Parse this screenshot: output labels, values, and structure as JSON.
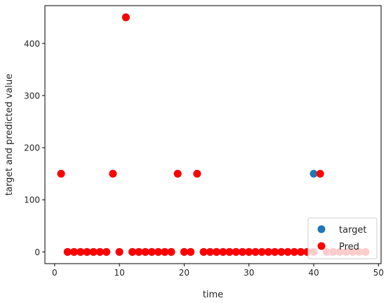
{
  "chart_data": {
    "type": "scatter",
    "title": "",
    "xlabel": "time",
    "ylabel": "target and predicted value",
    "xlim": [
      -1.5,
      50.4
    ],
    "ylim": [
      -22.5,
      472.5
    ],
    "xticks": [
      0,
      10,
      20,
      30,
      40,
      50
    ],
    "yticks": [
      0,
      100,
      200,
      300,
      400
    ],
    "grid": false,
    "legend_position": "lower right",
    "series": [
      {
        "name": "target",
        "color": "#1f77b4",
        "points": [
          [
            1,
            150
          ],
          [
            2,
            0
          ],
          [
            3,
            0
          ],
          [
            4,
            0
          ],
          [
            5,
            0
          ],
          [
            6,
            0
          ],
          [
            7,
            0
          ],
          [
            8,
            0
          ],
          [
            9,
            150
          ],
          [
            10,
            0
          ],
          [
            11,
            450
          ],
          [
            12,
            0
          ],
          [
            13,
            0
          ],
          [
            14,
            0
          ],
          [
            15,
            0
          ],
          [
            16,
            0
          ],
          [
            17,
            0
          ],
          [
            18,
            0
          ],
          [
            19,
            150
          ],
          [
            20,
            0
          ],
          [
            21,
            0
          ],
          [
            22,
            150
          ],
          [
            23,
            0
          ],
          [
            24,
            0
          ],
          [
            25,
            0
          ],
          [
            26,
            0
          ],
          [
            27,
            0
          ],
          [
            28,
            0
          ],
          [
            29,
            0
          ],
          [
            30,
            0
          ],
          [
            31,
            0
          ],
          [
            32,
            0
          ],
          [
            33,
            0
          ],
          [
            34,
            0
          ],
          [
            35,
            0
          ],
          [
            36,
            0
          ],
          [
            37,
            0
          ],
          [
            38,
            0
          ],
          [
            39,
            0
          ],
          [
            40,
            150
          ]
        ]
      },
      {
        "name": "Pred",
        "color": "#ff0000",
        "points": [
          [
            1,
            150
          ],
          [
            2,
            0
          ],
          [
            3,
            0
          ],
          [
            4,
            0
          ],
          [
            5,
            0
          ],
          [
            6,
            0
          ],
          [
            7,
            0
          ],
          [
            8,
            0
          ],
          [
            9,
            150
          ],
          [
            10,
            0
          ],
          [
            11,
            450
          ],
          [
            12,
            0
          ],
          [
            13,
            0
          ],
          [
            14,
            0
          ],
          [
            15,
            0
          ],
          [
            16,
            0
          ],
          [
            17,
            0
          ],
          [
            18,
            0
          ],
          [
            19,
            150
          ],
          [
            20,
            0
          ],
          [
            21,
            0
          ],
          [
            22,
            150
          ],
          [
            23,
            0
          ],
          [
            24,
            0
          ],
          [
            25,
            0
          ],
          [
            26,
            0
          ],
          [
            27,
            0
          ],
          [
            28,
            0
          ],
          [
            29,
            0
          ],
          [
            30,
            0
          ],
          [
            31,
            0
          ],
          [
            32,
            0
          ],
          [
            33,
            0
          ],
          [
            34,
            0
          ],
          [
            35,
            0
          ],
          [
            36,
            0
          ],
          [
            37,
            0
          ],
          [
            38,
            0
          ],
          [
            39,
            0
          ],
          [
            40,
            0
          ],
          [
            41,
            150
          ],
          [
            42,
            0
          ],
          [
            43,
            0
          ],
          [
            44,
            0
          ],
          [
            45,
            0
          ],
          [
            46,
            0
          ],
          [
            47,
            0
          ],
          [
            48,
            0
          ]
        ]
      }
    ]
  }
}
